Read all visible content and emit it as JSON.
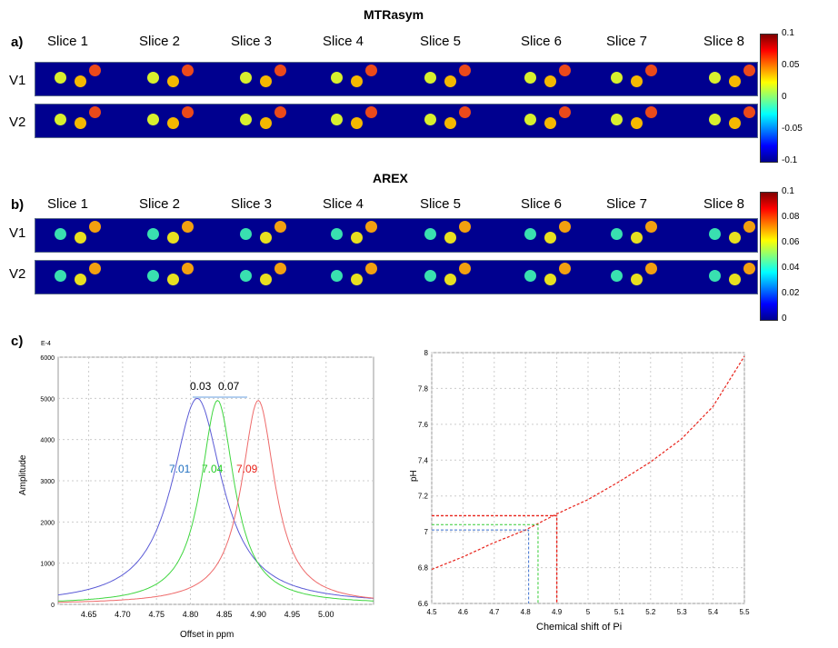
{
  "panel_a": {
    "title": "MTRasym",
    "label": "a)",
    "slices": [
      "Slice 1",
      "Slice 2",
      "Slice 3",
      "Slice 4",
      "Slice 5",
      "Slice 6",
      "Slice 7",
      "Slice 8"
    ],
    "rows": [
      "V1",
      "V2"
    ],
    "colorbar_ticks": [
      "0.1",
      "0.05",
      "0",
      "-0.05",
      "-0.1"
    ],
    "phantom_colors": [
      "#d8f02e",
      "#f5b800",
      "#ec4a1a"
    ]
  },
  "panel_b": {
    "title": "AREX",
    "label": "b)",
    "slices": [
      "Slice 1",
      "Slice 2",
      "Slice 3",
      "Slice 4",
      "Slice 5",
      "Slice 6",
      "Slice 7",
      "Slice 8"
    ],
    "rows": [
      "V1",
      "V2"
    ],
    "colorbar_ticks": [
      "0.1",
      "0.08",
      "0.06",
      "0.04",
      "0.02",
      "0"
    ],
    "phantom_colors": [
      "#39e0b0",
      "#e8e020",
      "#f2a010"
    ]
  },
  "panel_c": {
    "label": "c)",
    "spectrum": {
      "exponent_label": "E-4",
      "ylabel": "Amplitude",
      "xlabel": "Offset in ppm",
      "y_ticks": [
        "6000",
        "5000",
        "4000",
        "3000",
        "2000",
        "1000",
        "0"
      ],
      "x_ticks": [
        "4.65",
        "4.70",
        "4.75",
        "4.80",
        "4.85",
        "4.90",
        "4.95",
        "5.00"
      ],
      "diff_1": "0.03",
      "diff_2": "0.07",
      "peaks": [
        {
          "label": "7.01",
          "color": "#1f6fc0",
          "center": 4.81
        },
        {
          "label": "7.04",
          "color": "#22cc22",
          "center": 4.84
        },
        {
          "label": "7.09",
          "color": "#e8231b",
          "center": 4.9
        }
      ]
    },
    "ph_curve": {
      "ylabel": "pH",
      "xlabel": "Chemical shift of Pi",
      "y_ticks": [
        "8",
        "7.8",
        "7.6",
        "7.4",
        "7.2",
        "7",
        "6.8",
        "6.6"
      ],
      "x_ticks": [
        "4.5",
        "4.6",
        "4.7",
        "4.8",
        "4.9",
        "5",
        "5.1",
        "5.2",
        "5.3",
        "5.4",
        "5.5"
      ]
    }
  },
  "chart_data": [
    {
      "type": "line",
      "title": "",
      "xlabel": "Offset in ppm",
      "ylabel": "Amplitude",
      "xlim": [
        4.6,
        5.07
      ],
      "ylim": [
        0,
        6000
      ],
      "series": [
        {
          "name": "7.01",
          "peak_x": 4.81,
          "peak_y": 5000
        },
        {
          "name": "7.04",
          "peak_x": 4.84,
          "peak_y": 4950
        },
        {
          "name": "7.09",
          "peak_x": 4.9,
          "peak_y": 4950
        }
      ],
      "annotations": [
        "0.03",
        "0.07"
      ]
    },
    {
      "type": "line",
      "title": "",
      "xlabel": "Chemical shift of Pi",
      "ylabel": "pH",
      "xlim": [
        4.5,
        5.5
      ],
      "ylim": [
        6.6,
        8.0
      ],
      "x": [
        4.5,
        4.6,
        4.7,
        4.8,
        4.9,
        5.0,
        5.1,
        5.2,
        5.3,
        5.4,
        5.5
      ],
      "y": [
        6.79,
        6.86,
        6.94,
        7.01,
        7.1,
        7.18,
        7.28,
        7.39,
        7.52,
        7.7,
        7.98
      ],
      "markers": [
        {
          "x": 4.81,
          "y": 7.01
        },
        {
          "x": 4.84,
          "y": 7.04
        },
        {
          "x": 4.9,
          "y": 7.09
        }
      ]
    }
  ]
}
